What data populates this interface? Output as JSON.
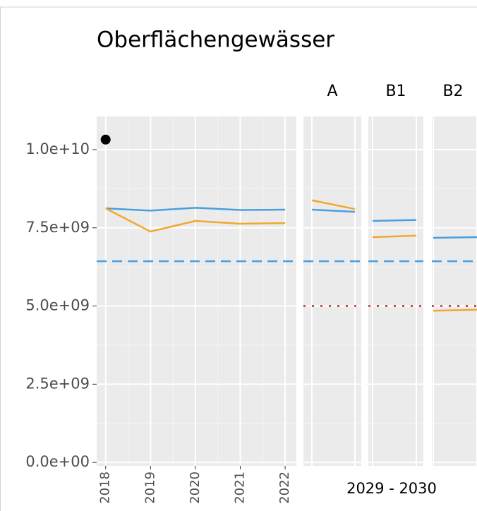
{
  "chart_data": {
    "type": "line",
    "title": "Oberflächengewässer",
    "x_label": "2029 - 2030",
    "ylim": [
      -110000000,
      11060000000
    ],
    "yticks": [
      {
        "value": 0,
        "label": "0.0e+00"
      },
      {
        "value": 2500000000,
        "label": "2.5e+09"
      },
      {
        "value": 5000000000,
        "label": "5.0e+09"
      },
      {
        "value": 7500000000,
        "label": "7.5e+09"
      },
      {
        "value": 10000000000,
        "label": "1.0e+10"
      }
    ],
    "grid": true,
    "hlines": [
      {
        "value": 6430000000,
        "color": "#4a9fe0",
        "dash": "dashed"
      }
    ],
    "panels": [
      {
        "x": [
          2018,
          2019,
          2020,
          2021,
          2022
        ],
        "xlim": [
          2017.8,
          2022.25
        ],
        "xticks": [
          2018,
          2019,
          2020,
          2021,
          2022
        ],
        "series": [
          {
            "color": "#4a9fe0",
            "values": [
              8120000000,
              8050000000,
              8140000000,
              8070000000,
              8080000000
            ]
          },
          {
            "color": "#f0a830",
            "values": [
              8120000000,
              7380000000,
              7720000000,
              7630000000,
              7650000000
            ]
          },
          {
            "color": "#000000",
            "mark": "point",
            "values": [
              10320000000,
              null,
              null,
              null,
              null
            ]
          }
        ]
      },
      {
        "strip": "A",
        "hlines": [
          {
            "value": 5000000000,
            "color": "#c0302a",
            "dash": "dotted"
          }
        ],
        "series": [
          {
            "color": "#4a9fe0",
            "values": [
              8080000000,
              8010000000
            ]
          },
          {
            "color": "#f0a830",
            "values": [
              8380000000,
              8100000000
            ]
          }
        ]
      },
      {
        "strip": "B1",
        "hlines": [
          {
            "value": 5000000000,
            "color": "#c0302a",
            "dash": "dotted"
          }
        ],
        "series": [
          {
            "color": "#4a9fe0",
            "values": [
              7720000000,
              7750000000
            ]
          },
          {
            "color": "#f0a830",
            "values": [
              7200000000,
              7250000000
            ]
          }
        ]
      },
      {
        "strip": "B2",
        "hlines": [
          {
            "value": 5000000000,
            "color": "#c0302a",
            "dash": "dotted"
          }
        ],
        "series": [
          {
            "color": "#4a9fe0",
            "values": [
              7180000000,
              7200000000
            ]
          },
          {
            "color": "#f0a830",
            "values": [
              4850000000,
              4880000000
            ]
          }
        ]
      }
    ]
  }
}
